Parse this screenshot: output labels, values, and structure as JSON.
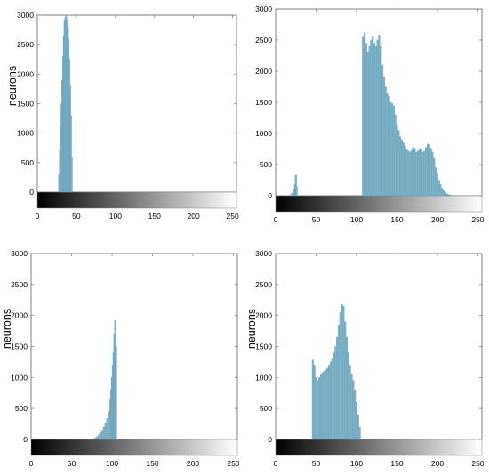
{
  "colors": {
    "bar": "#7fb3c8",
    "bar_edge": "#5f96ad",
    "axis": "#808080",
    "text": "#000000"
  },
  "chart_data": [
    {
      "type": "bar",
      "ylabel": "neurons",
      "xlim": [
        0,
        255
      ],
      "ylim": [
        0,
        3000
      ],
      "xticks": [
        "0",
        "50",
        "100",
        "150",
        "200",
        "250"
      ],
      "yticks": [
        "0",
        "500",
        "1000",
        "1500",
        "2000",
        "2500",
        "3000"
      ],
      "grid": false,
      "bins": [
        {
          "x": 28,
          "y": 300
        },
        {
          "x": 29,
          "y": 700
        },
        {
          "x": 30,
          "y": 1100
        },
        {
          "x": 31,
          "y": 1500
        },
        {
          "x": 32,
          "y": 1900
        },
        {
          "x": 33,
          "y": 2300
        },
        {
          "x": 34,
          "y": 2650
        },
        {
          "x": 35,
          "y": 2900
        },
        {
          "x": 36,
          "y": 2960
        },
        {
          "x": 37,
          "y": 3000
        },
        {
          "x": 38,
          "y": 2920
        },
        {
          "x": 39,
          "y": 2800
        },
        {
          "x": 40,
          "y": 2600
        },
        {
          "x": 41,
          "y": 2250
        },
        {
          "x": 42,
          "y": 1800
        },
        {
          "x": 43,
          "y": 1300
        },
        {
          "x": 44,
          "y": 600
        }
      ]
    },
    {
      "type": "bar",
      "ylabel": "",
      "xlim": [
        0,
        255
      ],
      "ylim": [
        0,
        3000
      ],
      "xticks": [
        "0",
        "50",
        "100",
        "150",
        "200",
        "250"
      ],
      "yticks": [
        "0",
        "500",
        "1000",
        "1500",
        "2000",
        "2500",
        "3000"
      ],
      "grid": false,
      "bins": [
        {
          "x": 20,
          "y": 40
        },
        {
          "x": 22,
          "y": 100
        },
        {
          "x": 24,
          "y": 180
        },
        {
          "x": 25,
          "y": 330
        },
        {
          "x": 26,
          "y": 150
        },
        {
          "x": 108,
          "y": 2550
        },
        {
          "x": 110,
          "y": 2620
        },
        {
          "x": 112,
          "y": 2450
        },
        {
          "x": 114,
          "y": 2300
        },
        {
          "x": 116,
          "y": 2400
        },
        {
          "x": 118,
          "y": 2500
        },
        {
          "x": 120,
          "y": 2550
        },
        {
          "x": 122,
          "y": 2450
        },
        {
          "x": 124,
          "y": 2400
        },
        {
          "x": 126,
          "y": 2500
        },
        {
          "x": 128,
          "y": 2580
        },
        {
          "x": 130,
          "y": 2400
        },
        {
          "x": 132,
          "y": 2100
        },
        {
          "x": 134,
          "y": 1900
        },
        {
          "x": 136,
          "y": 1750
        },
        {
          "x": 138,
          "y": 1650
        },
        {
          "x": 140,
          "y": 1600
        },
        {
          "x": 142,
          "y": 1500
        },
        {
          "x": 144,
          "y": 1480
        },
        {
          "x": 146,
          "y": 1450
        },
        {
          "x": 148,
          "y": 1300
        },
        {
          "x": 150,
          "y": 1150
        },
        {
          "x": 152,
          "y": 1050
        },
        {
          "x": 154,
          "y": 950
        },
        {
          "x": 156,
          "y": 900
        },
        {
          "x": 158,
          "y": 850
        },
        {
          "x": 160,
          "y": 800
        },
        {
          "x": 162,
          "y": 750
        },
        {
          "x": 164,
          "y": 720
        },
        {
          "x": 166,
          "y": 700
        },
        {
          "x": 168,
          "y": 730
        },
        {
          "x": 170,
          "y": 780
        },
        {
          "x": 172,
          "y": 760
        },
        {
          "x": 174,
          "y": 700
        },
        {
          "x": 176,
          "y": 720
        },
        {
          "x": 178,
          "y": 750
        },
        {
          "x": 180,
          "y": 740
        },
        {
          "x": 182,
          "y": 700
        },
        {
          "x": 184,
          "y": 720
        },
        {
          "x": 186,
          "y": 780
        },
        {
          "x": 188,
          "y": 830
        },
        {
          "x": 190,
          "y": 820
        },
        {
          "x": 192,
          "y": 760
        },
        {
          "x": 194,
          "y": 700
        },
        {
          "x": 196,
          "y": 600
        },
        {
          "x": 198,
          "y": 450
        },
        {
          "x": 200,
          "y": 350
        },
        {
          "x": 202,
          "y": 250
        },
        {
          "x": 204,
          "y": 180
        },
        {
          "x": 206,
          "y": 120
        },
        {
          "x": 208,
          "y": 80
        },
        {
          "x": 210,
          "y": 50
        },
        {
          "x": 212,
          "y": 30
        },
        {
          "x": 214,
          "y": 20
        },
        {
          "x": 216,
          "y": 10
        }
      ]
    },
    {
      "type": "bar",
      "ylabel": "neurons",
      "xlim": [
        0,
        255
      ],
      "ylim": [
        0,
        3000
      ],
      "xticks": [
        "0",
        "50",
        "100",
        "150",
        "200",
        "250"
      ],
      "yticks": [
        "0",
        "500",
        "1000",
        "1500",
        "2000",
        "2500",
        "3000"
      ],
      "grid": false,
      "bins": [
        {
          "x": 76,
          "y": 5
        },
        {
          "x": 78,
          "y": 15
        },
        {
          "x": 80,
          "y": 30
        },
        {
          "x": 82,
          "y": 50
        },
        {
          "x": 84,
          "y": 80
        },
        {
          "x": 86,
          "y": 110
        },
        {
          "x": 88,
          "y": 150
        },
        {
          "x": 90,
          "y": 200
        },
        {
          "x": 92,
          "y": 260
        },
        {
          "x": 94,
          "y": 340
        },
        {
          "x": 96,
          "y": 450
        },
        {
          "x": 98,
          "y": 650
        },
        {
          "x": 99,
          "y": 800
        },
        {
          "x": 100,
          "y": 1000
        },
        {
          "x": 101,
          "y": 1200
        },
        {
          "x": 102,
          "y": 1400
        },
        {
          "x": 103,
          "y": 1700
        },
        {
          "x": 104,
          "y": 1920
        },
        {
          "x": 105,
          "y": 1500
        }
      ]
    },
    {
      "type": "bar",
      "ylabel": "neurons",
      "xlim": [
        0,
        255
      ],
      "ylim": [
        0,
        3000
      ],
      "xticks": [
        "0",
        "50",
        "100",
        "150",
        "200",
        "250"
      ],
      "yticks": [
        "0",
        "500",
        "1000",
        "1500",
        "2000",
        "2500",
        "3000"
      ],
      "grid": false,
      "bins": [
        {
          "x": 46,
          "y": 1280
        },
        {
          "x": 48,
          "y": 1200
        },
        {
          "x": 50,
          "y": 1000
        },
        {
          "x": 52,
          "y": 950
        },
        {
          "x": 54,
          "y": 1000
        },
        {
          "x": 56,
          "y": 1050
        },
        {
          "x": 58,
          "y": 1080
        },
        {
          "x": 60,
          "y": 1100
        },
        {
          "x": 62,
          "y": 1120
        },
        {
          "x": 64,
          "y": 1150
        },
        {
          "x": 66,
          "y": 1200
        },
        {
          "x": 68,
          "y": 1250
        },
        {
          "x": 70,
          "y": 1300
        },
        {
          "x": 72,
          "y": 1400
        },
        {
          "x": 74,
          "y": 1500
        },
        {
          "x": 76,
          "y": 1650
        },
        {
          "x": 78,
          "y": 1850
        },
        {
          "x": 80,
          "y": 2050
        },
        {
          "x": 82,
          "y": 2180
        },
        {
          "x": 84,
          "y": 2150
        },
        {
          "x": 86,
          "y": 1900
        },
        {
          "x": 88,
          "y": 1650
        },
        {
          "x": 90,
          "y": 1400
        },
        {
          "x": 92,
          "y": 1200
        },
        {
          "x": 94,
          "y": 1050
        },
        {
          "x": 96,
          "y": 950
        },
        {
          "x": 98,
          "y": 800
        },
        {
          "x": 100,
          "y": 600
        },
        {
          "x": 102,
          "y": 400
        },
        {
          "x": 104,
          "y": 200
        }
      ]
    }
  ]
}
